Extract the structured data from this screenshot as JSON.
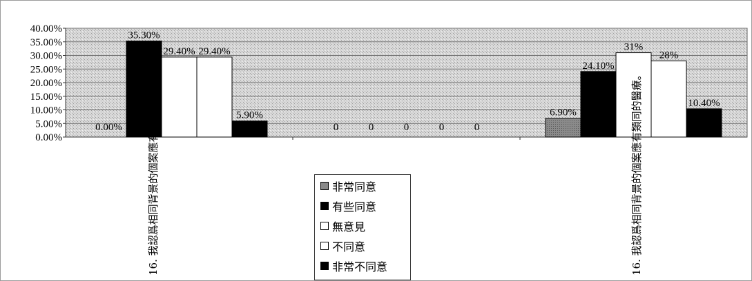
{
  "chart_data": {
    "type": "bar",
    "ylim": [
      0,
      40
    ],
    "yticks": [
      "0.00%",
      "5.00%",
      "10.00%",
      "15.00%",
      "20.00%",
      "25.00%",
      "30.00%",
      "35.00%",
      "40.00%"
    ],
    "categories": [
      "16. 我認爲相同背景的個案應有類同的醫療。",
      "",
      "16. 我認爲相同背景的個案應有類同的醫療。"
    ],
    "series": [
      {
        "name": "非常同意",
        "color": "#8a8a8a",
        "values": [
          0,
          0,
          6.9
        ],
        "labels": [
          "0.00%",
          "0",
          "6.90%"
        ]
      },
      {
        "name": "有些同意",
        "color": "#000000",
        "values": [
          35.3,
          0,
          24.1
        ],
        "labels": [
          "35.30%",
          "0",
          "24.10%"
        ]
      },
      {
        "name": "無意見",
        "color": "#ffffff",
        "values": [
          29.4,
          0,
          31
        ],
        "labels": [
          "29.40%",
          "0",
          "31%"
        ]
      },
      {
        "name": "不同意",
        "color": "#ffffff",
        "values": [
          29.4,
          0,
          28
        ],
        "labels": [
          "29.40%",
          "0",
          "28%"
        ]
      },
      {
        "name": "非常不同意",
        "color": "#000000",
        "values": [
          5.9,
          0,
          10.4
        ],
        "labels": [
          "5.90%",
          "0",
          "10.40%"
        ]
      }
    ],
    "grid": true,
    "legend_position": "bottom-center"
  }
}
